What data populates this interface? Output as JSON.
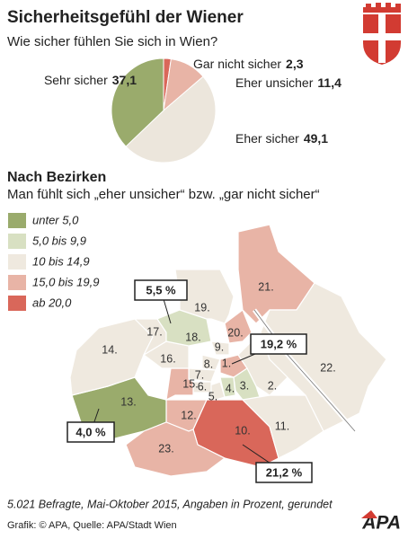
{
  "chart_data": {
    "type": "pie",
    "title": "Sicherheitsgefühl der Wiener",
    "subtitle": "Wie sicher fühlen Sie sich in Wien?",
    "categories": [
      "Gar nicht sicher",
      "Eher unsicher",
      "Eher sicher",
      "Sehr sicher"
    ],
    "values": [
      2.3,
      11.4,
      49.1,
      37.1
    ],
    "value_labels": [
      "2,3",
      "11,4",
      "49,1",
      "37,1"
    ],
    "colors": [
      "#d9675a",
      "#e8b4a6",
      "#ece6dc",
      "#9aab6c"
    ]
  },
  "map": {
    "title": "Nach Bezirken",
    "subtitle": "Man fühlt sich „eher unsicher“ bzw. „gar nicht sicher“",
    "legend": [
      {
        "label": "unter 5,0",
        "color": "#9aab6c"
      },
      {
        "label": "5,0 bis 9,9",
        "color": "#d8e0c2"
      },
      {
        "label": "10 bis 14,9",
        "color": "#efe9df"
      },
      {
        "label": "15,0 bis 19,9",
        "color": "#e8b4a6"
      },
      {
        "label": "ab 20,0",
        "color": "#d9675a"
      }
    ],
    "districts": [
      {
        "label": "1.",
        "color": "#e8b4a6"
      },
      {
        "label": "2.",
        "color": "#efe9df"
      },
      {
        "label": "3.",
        "color": "#d8e0c2"
      },
      {
        "label": "4.",
        "color": "#d8e0c2"
      },
      {
        "label": "5.",
        "color": "#efe9df"
      },
      {
        "label": "6.",
        "color": "#efe9df"
      },
      {
        "label": "7.",
        "color": "#efe9df"
      },
      {
        "label": "8.",
        "color": "#efe9df"
      },
      {
        "label": "9.",
        "color": "#efe9df"
      },
      {
        "label": "10.",
        "color": "#d9675a"
      },
      {
        "label": "11.",
        "color": "#efe9df"
      },
      {
        "label": "12.",
        "color": "#e8b4a6"
      },
      {
        "label": "13.",
        "color": "#9aab6c"
      },
      {
        "label": "14.",
        "color": "#efe9df"
      },
      {
        "label": "15.",
        "color": "#e8b4a6"
      },
      {
        "label": "16.",
        "color": "#efe9df"
      },
      {
        "label": "17.",
        "color": "#efe9df"
      },
      {
        "label": "18.",
        "color": "#d8e0c2"
      },
      {
        "label": "19.",
        "color": "#efe9df"
      },
      {
        "label": "20.",
        "color": "#e8b4a6"
      },
      {
        "label": "21.",
        "color": "#e8b4a6"
      },
      {
        "label": "22.",
        "color": "#efe9df"
      },
      {
        "label": "23.",
        "color": "#e8b4a6"
      }
    ],
    "callouts": [
      "5,5 %",
      "19,2 %",
      "4,0 %",
      "21,2 %"
    ]
  },
  "footer": {
    "note": "5.021 Befragte, Mai-Oktober 2015, Angaben in Prozent, gerundet",
    "credit": "Grafik: © APA, Quelle: APA/Stadt Wien",
    "logo": "APA"
  }
}
